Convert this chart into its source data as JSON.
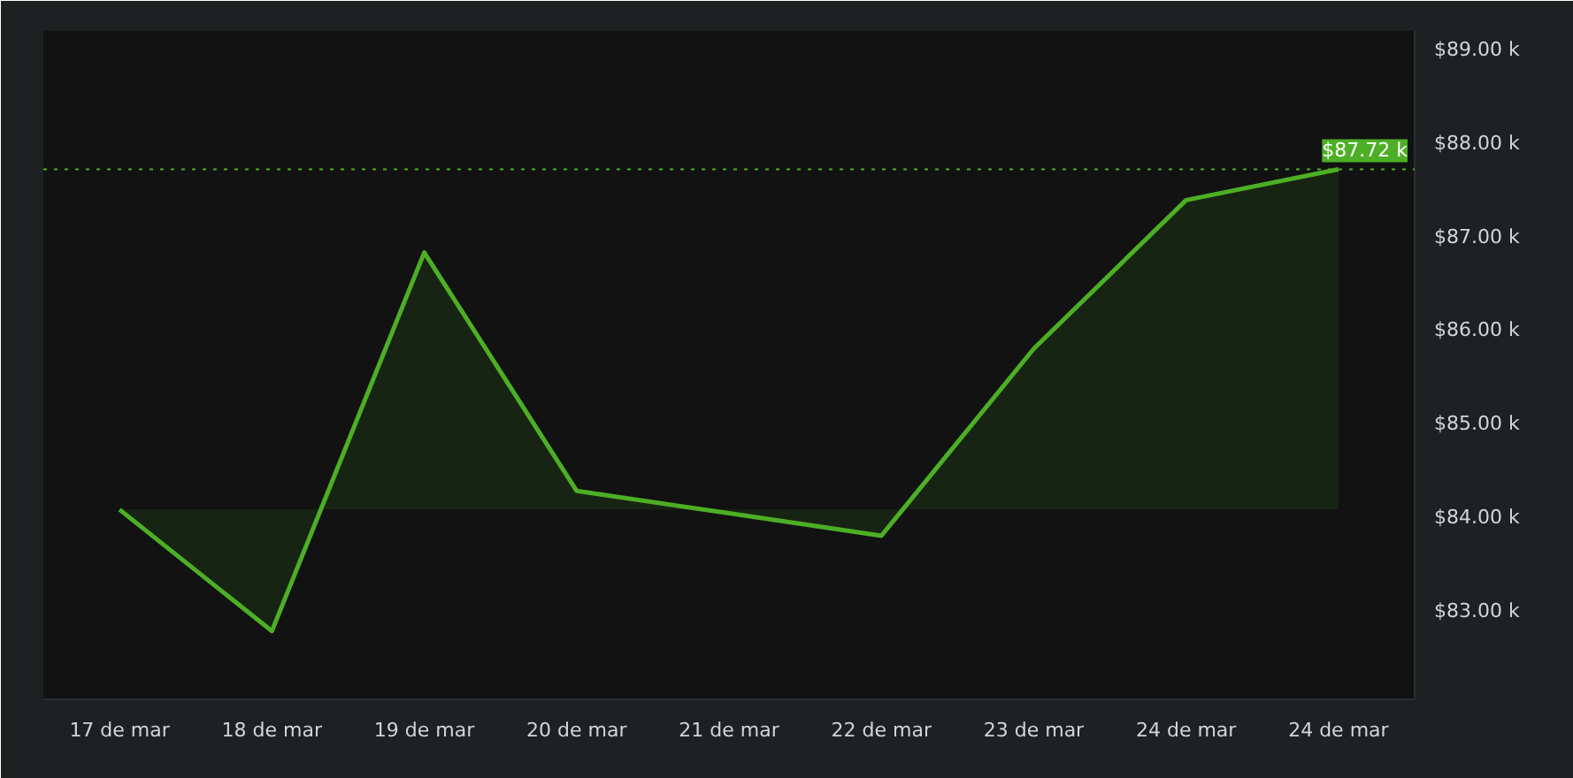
{
  "chart_data": {
    "type": "area",
    "categories": [
      "17 de mar",
      "18 de mar",
      "19 de mar",
      "20 de mar",
      "21 de mar",
      "22 de mar",
      "23 de mar",
      "24 de mar",
      "24 de mar"
    ],
    "series": [
      {
        "color": "#4caf25",
        "values": [
          84.08,
          82.78,
          86.83,
          84.28,
          84.04,
          83.8,
          85.8,
          87.39,
          87.72
        ]
      }
    ],
    "ylim": [
      82.05,
      89.2
    ],
    "yticks": [
      {
        "value": 83,
        "label": "$83.00 k"
      },
      {
        "value": 84,
        "label": "$84.00 k"
      },
      {
        "value": 85,
        "label": "$85.00 k"
      },
      {
        "value": 86,
        "label": "$86.00 k"
      },
      {
        "value": 87,
        "label": "$87.00 k"
      },
      {
        "value": 88,
        "label": "$88.00 k"
      },
      {
        "value": 89,
        "label": "$89.00 k"
      }
    ],
    "ref_lines": [
      {
        "axis": "y",
        "value": 87.72,
        "label": "$87.72 k",
        "color": "#4caf25",
        "line_style": "dotted"
      }
    ],
    "grid": false,
    "marker": "none",
    "line_style": "solid"
  }
}
